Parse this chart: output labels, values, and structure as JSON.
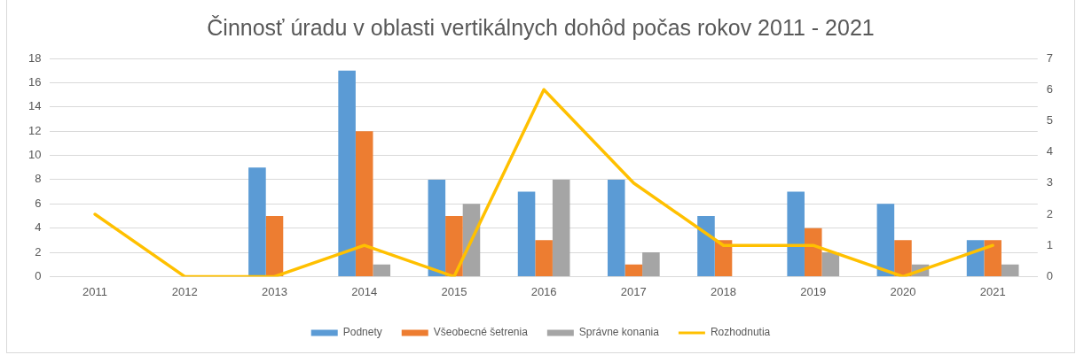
{
  "chart_data": {
    "type": "bar",
    "title": "Činnosť úradu v oblasti vertikálnych dohôd počas rokov 2011 - 2021",
    "categories": [
      "2011",
      "2012",
      "2013",
      "2014",
      "2015",
      "2016",
      "2017",
      "2018",
      "2019",
      "2020",
      "2021"
    ],
    "series": [
      {
        "name": "Podnety",
        "color": "#5b9bd5",
        "values": [
          0,
          0,
          9,
          17,
          8,
          7,
          8,
          5,
          7,
          6,
          3
        ]
      },
      {
        "name": "Všeobecné šetrenia",
        "color": "#ed7d31",
        "values": [
          0,
          0,
          5,
          12,
          5,
          3,
          1,
          3,
          4,
          3,
          3
        ]
      },
      {
        "name": "Správne konania",
        "color": "#a5a5a5",
        "values": [
          0,
          0,
          0,
          1,
          6,
          8,
          2,
          0,
          2,
          1,
          1
        ]
      },
      {
        "name": "Rozhodnutia",
        "type": "line",
        "axis": "y2",
        "color": "#ffc000",
        "marker": "none",
        "values": [
          2,
          0,
          0,
          1,
          0,
          6,
          3,
          1,
          1,
          0,
          1
        ]
      }
    ],
    "ylim": [
      0,
      18
    ],
    "yticks": [
      0,
      2,
      4,
      6,
      8,
      10,
      12,
      14,
      16,
      18
    ],
    "y2lim": [
      0,
      7
    ],
    "y2ticks": [
      0,
      1,
      2,
      3,
      4,
      5,
      6,
      7
    ],
    "grid": "y",
    "legend": "bottom"
  }
}
